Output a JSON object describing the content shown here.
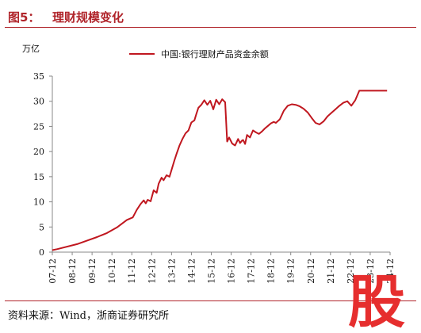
{
  "header": {
    "figure_label": "图5：",
    "title": "理财规模变化"
  },
  "footer": {
    "source": "资料来源：Wind，浙商证券研究所"
  },
  "watermark": {
    "glyph": "股",
    "color": "#e62e2e"
  },
  "colors": {
    "accent": "#b0242a",
    "series": "#c0171f"
  },
  "chart_data": {
    "type": "line",
    "title": "",
    "ylabel": "万亿",
    "xlabel": "",
    "ylim": [
      0,
      35
    ],
    "yticks": [
      0,
      5,
      10,
      15,
      20,
      25,
      30,
      35
    ],
    "xticks": [
      "07-12",
      "08-12",
      "09-12",
      "10-12",
      "11-12",
      "12-12",
      "13-12",
      "14-12",
      "15-12",
      "16-12",
      "17-12",
      "18-12",
      "19-12",
      "20-12",
      "21-12",
      "22-12",
      "23-12",
      "24-12"
    ],
    "grid": false,
    "legend": "top-center",
    "series": [
      {
        "name": "中国:银行理财产品资金余额",
        "x": [
          2007.75,
          2008.0,
          2009.0,
          2009.5,
          2010.0,
          2010.5,
          2011.0,
          2011.5,
          2011.8,
          2012.0,
          2012.2,
          2012.35,
          2012.45,
          2012.55,
          2012.7,
          2012.85,
          2013.0,
          2013.1,
          2013.25,
          2013.35,
          2013.5,
          2013.65,
          2013.8,
          2013.9,
          2014.0,
          2014.15,
          2014.3,
          2014.45,
          2014.6,
          2014.75,
          2014.9,
          2015.0,
          2015.1,
          2015.25,
          2015.4,
          2015.55,
          2015.7,
          2015.85,
          2016.0,
          2016.15,
          2016.3,
          2016.45,
          2016.55,
          2016.65,
          2016.8,
          2016.95,
          2017.1,
          2017.2,
          2017.3,
          2017.35,
          2017.45,
          2017.55,
          2017.7,
          2017.85,
          2018.0,
          2018.15,
          2018.3,
          2018.45,
          2018.6,
          2018.75,
          2018.9,
          2019.0,
          2019.2,
          2019.4,
          2019.6,
          2019.8,
          2020.0,
          2020.2,
          2020.4,
          2020.6,
          2020.8,
          2021.0,
          2021.2,
          2021.4,
          2021.6,
          2021.8,
          2022.0,
          2022.2,
          2022.4,
          2022.6,
          2022.8,
          2023.0,
          2023.2,
          2023.4,
          2023.6,
          2023.8,
          2024.0,
          2024.2,
          2024.4,
          2024.6
        ],
        "values": [
          0.4,
          0.6,
          1.6,
          2.3,
          3.0,
          3.8,
          4.9,
          6.4,
          6.9,
          8.4,
          9.6,
          10.3,
          9.7,
          10.4,
          10.1,
          12.3,
          11.8,
          13.6,
          14.8,
          14.3,
          15.3,
          15.0,
          17.0,
          18.3,
          19.5,
          21.2,
          22.5,
          23.6,
          24.2,
          25.8,
          26.2,
          27.5,
          28.7,
          29.3,
          30.2,
          29.3,
          30.1,
          28.4,
          30.3,
          29.4,
          30.4,
          29.8,
          22.0,
          22.8,
          21.6,
          21.2,
          22.5,
          21.7,
          22.2,
          22.3,
          21.5,
          23.3,
          22.8,
          24.2,
          23.8,
          23.5,
          24.0,
          24.6,
          25.1,
          25.6,
          25.9,
          25.7,
          26.4,
          28.1,
          29.1,
          29.4,
          29.3,
          29.0,
          28.5,
          27.8,
          26.7,
          25.7,
          25.4,
          26.0,
          27.0,
          27.7,
          28.4,
          29.1,
          29.7,
          30.0,
          29.1,
          30.2,
          32.1,
          32.1,
          32.1,
          32.1,
          32.1,
          32.1,
          32.1,
          32.1
        ]
      }
    ]
  }
}
